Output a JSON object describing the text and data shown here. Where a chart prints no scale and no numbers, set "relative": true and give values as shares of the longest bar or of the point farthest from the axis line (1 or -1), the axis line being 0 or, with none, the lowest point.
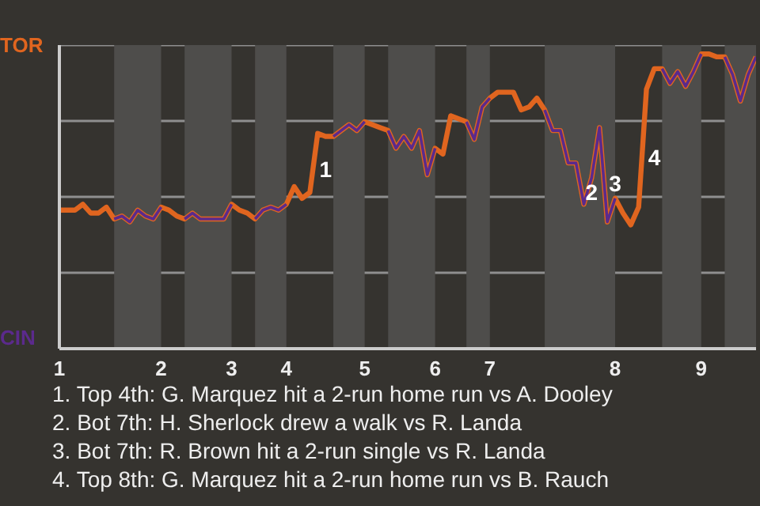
{
  "chart_data": {
    "type": "line",
    "relative": true,
    "categories": [
      "1",
      null,
      null,
      null,
      null,
      null,
      null,
      null,
      null,
      null,
      null,
      null,
      null,
      "2",
      null,
      null,
      null,
      null,
      null,
      null,
      null,
      null,
      "3",
      null,
      null,
      null,
      null,
      null,
      null,
      "4",
      null,
      null,
      null,
      null,
      null,
      null,
      null,
      null,
      null,
      "5",
      null,
      null,
      null,
      null,
      null,
      null,
      null,
      null,
      "6",
      null,
      null,
      null,
      null,
      null,
      null,
      "7",
      null,
      null,
      null,
      null,
      null,
      null,
      null,
      null,
      null,
      null,
      null,
      null,
      null,
      null,
      null,
      "8",
      null,
      null,
      null,
      null,
      null,
      null,
      null,
      null,
      null,
      null,
      "9",
      null,
      null,
      null,
      null,
      null,
      null,
      null
    ],
    "marker": "none",
    "line_style": "solid",
    "series": [
      {
        "color": "#e0651f",
        "values": [
          0.47,
          0.47,
          0.47,
          0.49,
          0.46,
          0.46,
          0.48,
          0.44,
          0.45,
          0.43,
          0.47,
          0.45,
          0.44,
          0.48,
          0.47,
          0.45,
          0.44,
          0.46,
          0.44,
          0.44,
          0.44,
          0.44,
          0.49,
          0.47,
          0.46,
          0.44,
          0.47,
          0.48,
          0.47,
          0.49,
          0.55,
          0.51,
          0.53,
          0.73,
          0.72,
          0.72,
          0.74,
          0.76,
          0.74,
          0.77,
          0.76,
          0.75,
          0.74,
          0.68,
          0.72,
          0.68,
          0.74,
          0.59,
          0.68,
          0.66,
          0.79,
          0.78,
          0.77,
          0.71,
          0.82,
          0.85,
          0.87,
          0.87,
          0.87,
          0.81,
          0.82,
          0.85,
          0.81,
          0.74,
          0.74,
          0.63,
          0.63,
          0.49,
          0.58,
          0.75,
          0.43,
          0.51,
          0.46,
          0.42,
          0.48,
          0.88,
          0.95,
          0.95,
          0.9,
          0.94,
          0.89,
          0.94,
          1,
          1,
          0.99,
          0.99,
          0.93,
          0.84,
          0.93,
          0.99
        ]
      },
      {
        "color": "#5b2a8c",
        "values": [
          null,
          null,
          null,
          null,
          null,
          null,
          null,
          0.44,
          0.45,
          0.43,
          0.47,
          0.45,
          0.44,
          0.48,
          null,
          null,
          0.44,
          0.46,
          0.44,
          0.44,
          0.44,
          0.44,
          0.49,
          null,
          null,
          0.44,
          0.47,
          0.48,
          0.47,
          0.49,
          null,
          null,
          null,
          null,
          null,
          0.72,
          0.74,
          0.76,
          0.74,
          0.77,
          null,
          null,
          0.74,
          0.68,
          0.72,
          0.68,
          0.74,
          0.59,
          0.68,
          null,
          null,
          null,
          0.77,
          0.71,
          0.82,
          0.85,
          null,
          null,
          null,
          null,
          null,
          null,
          0.81,
          0.74,
          0.74,
          0.63,
          0.63,
          0.49,
          0.58,
          0.75,
          0.43,
          0.51,
          null,
          null,
          null,
          null,
          null,
          0.95,
          0.9,
          0.94,
          0.89,
          0.94,
          1,
          null,
          null,
          0.99,
          0.93,
          0.84,
          0.93,
          0.99
        ]
      }
    ],
    "annotations": [
      "TOR",
      "CIN",
      "1",
      "2",
      "3",
      "4",
      "1. Top 4th: G. Marquez hit a 2-run home run vs A. Dooley",
      "2. Bot 7th: H. Sherlock drew a walk vs R. Landa",
      "3. Bot 7th: R. Brown hit a 2-run single vs R. Landa",
      "4. Top 8th: G. Marquez hit a 2-run home run vs B. Rauch"
    ]
  }
}
